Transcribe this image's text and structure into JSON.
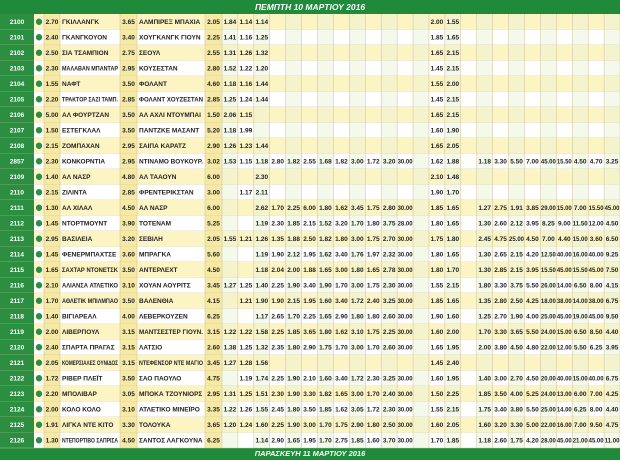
{
  "header": {
    "title": "ΠΕΜΠΤΗ 10 ΜΑΡΤΙΟΥ 2016"
  },
  "footer": {
    "title": "ΠΑΡΑΣΚΕΥΗ 11 ΜΑΡΤΙΟΥ 2016"
  },
  "table": {
    "rows": [
      {
        "code": "2100",
        "odd1": "2.70",
        "home": "ΓΚΙΛΛΑΝΓΚ",
        "oddx": "3.65",
        "away": "ΑΛΜΠΙΡΕΞ ΜΠΑΧΙΑ",
        "odd2": "2.05",
        "extra": [
          "1.84",
          "1.14",
          "1.14",
          null,
          null,
          null,
          null,
          null,
          null,
          null,
          null,
          null,
          null,
          "2.00",
          "1.55"
        ]
      },
      {
        "code": "2101",
        "odd1": "2.40",
        "home": "ΓΚΑΝΓΚΟΥΟΝ",
        "oddx": "3.40",
        "away": "ΧΟΥΓΚΑΝΓΚ ΓΙΟΥΝ",
        "odd2": "2.25",
        "extra": [
          "1.41",
          "1.16",
          "1.25",
          null,
          null,
          null,
          null,
          null,
          null,
          null,
          null,
          null,
          null,
          "1.85",
          "1.65"
        ]
      },
      {
        "code": "2102",
        "odd1": "2.50",
        "home": "ΣΙΑ ΤΣΑΜΠΙΟΝ",
        "oddx": "2.75",
        "away": "ΣΕΟΥΛ",
        "odd2": "2.55",
        "extra": [
          "1.31",
          "1.26",
          "1.32",
          null,
          null,
          null,
          null,
          null,
          null,
          null,
          null,
          null,
          null,
          "1.65",
          "2.15"
        ]
      },
      {
        "code": "2103",
        "odd1": "2.30",
        "home": "ΜΑΛΑΒΑΝ ΜΠΑΝΤΑΡ",
        "oddx": "2.95",
        "away": "ΚΟΥΣΕΣΤΑΝ",
        "odd2": "2.80",
        "extra": [
          "1.52",
          "1.22",
          "1.20",
          null,
          null,
          null,
          null,
          null,
          null,
          null,
          null,
          null,
          null,
          "1.45",
          "2.15"
        ]
      },
      {
        "code": "2104",
        "odd1": "1.55",
        "home": "ΝΑΦΤ",
        "oddx": "3.50",
        "away": "ΦΟΛΑΝΤ",
        "odd2": "4.60",
        "extra": [
          "1.18",
          "1.16",
          "1.44",
          null,
          null,
          null,
          null,
          null,
          null,
          null,
          null,
          null,
          null,
          "1.55",
          "2.00"
        ]
      },
      {
        "code": "2105",
        "odd1": "2.20",
        "home": "ΤΡΑΚΤΟΡ ΣΑΖΙ ΤΑΜΠ.",
        "oddx": "2.85",
        "away": "ΦΟΛΑΝΤ ΧΟΥΖΕΣΤΑΝ",
        "odd2": "2.85",
        "extra": [
          "1.25",
          "1.24",
          "1.44",
          null,
          null,
          null,
          null,
          null,
          null,
          null,
          null,
          null,
          null,
          "1.45",
          "2.15"
        ]
      },
      {
        "code": "2106",
        "odd1": "5.00",
        "home": "ΑΛ ΦΟΥΡΤΖΑΝ",
        "oddx": "3.50",
        "away": "ΑΛ ΑΧΛΙ ΝΤΟΥΜΠΑΙ",
        "odd2": "1.50",
        "extra": [
          "2.06",
          "1.15",
          null,
          null,
          null,
          null,
          null,
          null,
          null,
          null,
          null,
          null,
          null,
          "1.65",
          "2.15"
        ]
      },
      {
        "code": "2107",
        "odd1": "1.50",
        "home": "ΕΣΤΕΓΚΛΑΛ",
        "oddx": "3.50",
        "away": "ΠΑΝΤΖΚΕ ΜΑΣΑΝΤ",
        "odd2": "5.20",
        "extra": [
          "1.18",
          "1.99",
          null,
          null,
          null,
          null,
          null,
          null,
          null,
          null,
          null,
          null,
          null,
          "1.60",
          "1.90"
        ]
      },
      {
        "code": "2108",
        "odd1": "2.15",
        "home": "ΖΟΜΠΑΧΑΝ",
        "oddx": "2.95",
        "away": "ΣΑΙΠΑ ΚΑΡΑΤΖ",
        "odd2": "2.90",
        "extra": [
          "1.26",
          "1.23",
          "1.44",
          null,
          null,
          null,
          null,
          null,
          null,
          null,
          null,
          null,
          null,
          "1.65",
          "2.05"
        ]
      },
      {
        "code": "2857",
        "odd1": "2.30",
        "home": "ΚΟΝΚΟΡΝΤΙΑ",
        "oddx": "2.95",
        "away": "ΝΤΙΝΑΜΟ ΒΟΥΚΟΥΡ.",
        "odd2": "3.02",
        "extra": [
          "1.53",
          "1.15",
          "1.18",
          "2.80",
          "1.82",
          "2.55",
          "1.68",
          "1.82",
          "3.00",
          "1.72",
          "3.20",
          "30.00",
          null,
          "1.62",
          "1.88",
          null,
          "1.18",
          "3.30",
          "5.50",
          "7.00",
          "45.00",
          "15.50",
          "4.50",
          "4.70",
          "3.25"
        ]
      },
      {
        "code": "2109",
        "odd1": "1.40",
        "home": "ΑΛ ΝΑΣΡ",
        "oddx": "4.80",
        "away": "ΑΛ ΤΑΑΟΥΝ",
        "odd2": "6.00",
        "extra": [
          null,
          null,
          "2.30",
          null,
          null,
          null,
          null,
          null,
          null,
          null,
          null,
          null,
          null,
          "2.10",
          "1.48"
        ]
      },
      {
        "code": "2110",
        "odd1": "2.15",
        "home": "ΖΙΛΙΝΤΑ",
        "oddx": "2.85",
        "away": "ΦΡΕΝΤΕΡΙΚΣΤΑΝ",
        "odd2": "3.00",
        "extra": [
          null,
          "1.17",
          "2.11",
          null,
          null,
          null,
          null,
          null,
          null,
          null,
          null,
          null,
          null,
          "1.90",
          "1.70"
        ]
      },
      {
        "code": "2111",
        "odd1": "1.30",
        "home": "ΑΛ ΧΙΛΑΛ",
        "oddx": "4.50",
        "away": "ΑΛ ΝΑΣΡ",
        "odd2": "6.00",
        "extra": [
          null,
          null,
          "2.62",
          "1.70",
          "2.25",
          "6.00",
          "1.80",
          "1.62",
          "3.45",
          "1.75",
          "2.80",
          "30.00",
          null,
          "1.85",
          "1.65",
          null,
          "1.27",
          "2.75",
          "1.91",
          "3.85",
          "29.00",
          "15.00",
          "7.00",
          "15.50",
          "45.00"
        ]
      },
      {
        "code": "2112",
        "odd1": "1.45",
        "home": "ΝΤΟΡΤΜΟΥΝΤ",
        "oddx": "3.90",
        "away": "ΤΟΤΕΝΑΜ",
        "odd2": "5.25",
        "extra": [
          null,
          null,
          "1.19",
          "2.30",
          "1.85",
          "2.15",
          "1.52",
          "3.20",
          "1.70",
          "1.80",
          "3.75",
          "28.00",
          null,
          "1.80",
          "1.65",
          null,
          "1.30",
          "2.60",
          "2.12",
          "3.95",
          "8.25",
          "9.00",
          "11.50",
          "12.00",
          "4.50"
        ]
      },
      {
        "code": "2113",
        "odd1": "2.95",
        "home": "ΒΑΣΙΛΕΙΑ",
        "oddx": "3.20",
        "away": "ΣΕΒΙΛΗ",
        "odd2": "2.05",
        "extra": [
          "1.55",
          "1.21",
          "1.26",
          "1.35",
          "1.88",
          "2.50",
          "1.82",
          "1.80",
          "3.00",
          "1.75",
          "2.70",
          "30.00",
          null,
          "1.75",
          "1.80",
          null,
          "2.45",
          "4.75",
          "25.00",
          "4.50",
          "7.00",
          "4.40",
          "15.00",
          "3.60",
          "6.50"
        ]
      },
      {
        "code": "2114",
        "odd1": "1.45",
        "home": "ΦΕΝΕΡΜΠΑΧΤΣΕ",
        "oddx": "3.60",
        "away": "ΜΠΡΑΓΚΑ",
        "odd2": "5.60",
        "extra": [
          null,
          null,
          "1.19",
          "1.90",
          "2.12",
          "1.95",
          "1.62",
          "3.40",
          "1.76",
          "1.97",
          "2.32",
          "30.00",
          null,
          "1.80",
          "1.65",
          null,
          "1.30",
          "2.65",
          "2.15",
          "4.20",
          "12.50",
          "40.00",
          "16.00",
          "40.00",
          "9.25"
        ]
      },
      {
        "code": "2115",
        "odd1": "1.65",
        "home": "ΣΑΧΤΑΡ ΝΤΟΝΕΤΣΚ",
        "oddx": "3.50",
        "away": "ΑΝΤΕΡΛΕΧΤ",
        "odd2": "4.50",
        "extra": [
          null,
          null,
          "1.18",
          "2.04",
          "2.00",
          "1.88",
          "1.65",
          "3.00",
          "1.80",
          "1.65",
          "2.78",
          "30.00",
          null,
          "1.80",
          "1.70",
          null,
          "1.30",
          "2.85",
          "2.15",
          "3.95",
          "15.50",
          "45.00",
          "15.50",
          "45.00",
          "7.50"
        ]
      },
      {
        "code": "2116",
        "odd1": "2.10",
        "home": "ΑΛΙΑΝΣΑ ΑΤΛΕΤΙΚΟ",
        "oddx": "3.10",
        "away": "ΧΟΥΑΝ ΑΟΥΡΙΤΣ",
        "odd2": "3.45",
        "extra": [
          "1.27",
          "1.25",
          "1.40",
          "2.25",
          "1.90",
          "3.40",
          "1.90",
          "1.70",
          "3.00",
          "1.75",
          "2.30",
          "30.00",
          null,
          "1.55",
          "2.15",
          null,
          "1.80",
          "3.30",
          "3.75",
          "5.50",
          "26.00",
          "14.00",
          "6.50",
          "8.00",
          "4.15"
        ]
      },
      {
        "code": "2117",
        "odd1": "1.70",
        "home": "ΑΘΛΕΤΙΚ ΜΠΙΛΜΠΑΟ",
        "oddx": "3.50",
        "away": "ΒΑΛΕΝΘΙΑ",
        "odd2": "4.15",
        "extra": [
          null,
          "1.21",
          "1.90",
          "1.90",
          "2.15",
          "1.95",
          "1.60",
          "3.40",
          "1.72",
          "2.40",
          "3.25",
          "30.00",
          null,
          "1.85",
          "1.65",
          null,
          "1.35",
          "2.80",
          "2.50",
          "4.25",
          "18.00",
          "38.00",
          "14.00",
          "38.00",
          "6.75"
        ]
      },
      {
        "code": "2118",
        "odd1": "1.40",
        "home": "ΒΙΓΙΑΡΕΑΛ",
        "oddx": "4.00",
        "away": "ΛΕΒΕΡΚΟΥΖΕΝ",
        "odd2": "6.25",
        "extra": [
          null,
          null,
          "1.17",
          "2.65",
          "1.70",
          "2.25",
          "1.65",
          "2.90",
          "1.80",
          "1.80",
          "2.60",
          "30.00",
          null,
          "1.90",
          "1.60",
          null,
          "1.25",
          "2.70",
          "1.90",
          "4.00",
          "25.00",
          "45.00",
          "19.00",
          "45.00",
          "9.50"
        ]
      },
      {
        "code": "2119",
        "odd1": "2.00",
        "home": "ΛΙΒΕΡΠΟΥΛ",
        "oddx": "3.15",
        "away": "ΜΑΝΤΣΕΣΤΕΡ ΓΙΟΥΝ.",
        "odd2": "3.15",
        "extra": [
          "1.22",
          "1.22",
          "1.58",
          "2.25",
          "1.85",
          "3.65",
          "1.80",
          "1.62",
          "3.10",
          "1.75",
          "2.25",
          "30.00",
          null,
          "1.60",
          "2.00",
          null,
          "1.70",
          "3.30",
          "3.65",
          "5.50",
          "24.00",
          "15.00",
          "6.50",
          "8.50",
          "4.40"
        ]
      },
      {
        "code": "2120",
        "odd1": "2.40",
        "home": "ΣΠΑΡΤΑ ΠΡΑΓΑΣ",
        "oddx": "3.15",
        "away": "ΛΑΤΣΙΟ",
        "odd2": "2.60",
        "extra": [
          "1.38",
          "1.25",
          "1.32",
          "2.35",
          "1.80",
          "2.90",
          "1.75",
          "1.70",
          "3.00",
          "1.70",
          "2.60",
          "30.00",
          null,
          "1.65",
          "1.95",
          null,
          "2.00",
          "3.80",
          "4.50",
          "4.80",
          "22.00",
          "12.00",
          "5.50",
          "6.25",
          "3.95"
        ]
      },
      {
        "code": "2121",
        "odd1": "2.05",
        "home": "ΚΟΜΕΡΣΙΑΛΕΣ ΟΥΝΙΔΟΣ",
        "oddx": "3.15",
        "away": "ΝΤΕΦΕΝΣΟΡ ΝΤΕ ΜΑΓΙΟ",
        "odd2": "3.45",
        "extra": [
          "1.27",
          "1.28",
          "1.56",
          null,
          null,
          null,
          null,
          null,
          null,
          null,
          null,
          null,
          null,
          "1.45",
          "2.40"
        ]
      },
      {
        "code": "2122",
        "odd1": "1.72",
        "home": "ΡΙΒΕΡ ΠΛΕΪΤ",
        "oddx": "3.50",
        "away": "ΣΑΟ ΠΑΟΥΛΟ",
        "odd2": "4.75",
        "extra": [
          null,
          "1.19",
          "1.74",
          "2.25",
          "1.90",
          "2.10",
          "1.60",
          "3.40",
          "1.72",
          "2.30",
          "3.25",
          "30.00",
          null,
          "1.60",
          "1.95",
          null,
          "1.40",
          "3.00",
          "2.70",
          "4.50",
          "20.00",
          "40.00",
          "15.00",
          "40.00",
          "6.75"
        ]
      },
      {
        "code": "2123",
        "odd1": "2.20",
        "home": "ΜΠΟΛΙΒΑΡ",
        "oddx": "3.05",
        "away": "ΜΠΟΚΑ ΤΖΟΥΝΙΟΡΣ",
        "odd2": "2.95",
        "extra": [
          "1.31",
          "1.25",
          "1.51",
          "2.30",
          "1.90",
          "3.30",
          "1.82",
          "1.65",
          "3.00",
          "1.70",
          "2.40",
          "30.00",
          null,
          "1.50",
          "2.25",
          null,
          "1.85",
          "3.50",
          "4.00",
          "5.25",
          "24.00",
          "13.00",
          "6.00",
          "7.00",
          "4.25"
        ]
      },
      {
        "code": "2124",
        "odd1": "2.00",
        "home": "ΚΟΛΟ ΚΟΛΟ",
        "oddx": "3.10",
        "away": "ΑΤΛΕΤΙΚΟ ΜΙΝΕΪΡΟ",
        "odd2": "3.35",
        "extra": [
          "1.22",
          "1.26",
          "1.55",
          "2.45",
          "1.80",
          "3.50",
          "1.85",
          "1.62",
          "3.05",
          "1.72",
          "2.30",
          "30.00",
          null,
          "1.55",
          "2.15",
          null,
          "1.75",
          "3.40",
          "3.80",
          "5.50",
          "25.00",
          "14.00",
          "6.25",
          "8.00",
          "4.40"
        ]
      },
      {
        "code": "2125",
        "odd1": "1.91",
        "home": "ΛΙΓΚΑ ΝΤΕ ΚΙΤΟ",
        "oddx": "3.30",
        "away": "ΤΟΛΟΥΚΑ",
        "odd2": "3.65",
        "extra": [
          "1.20",
          "1.24",
          "1.60",
          "2.25",
          "1.90",
          "3.00",
          "1.70",
          "1.75",
          "2.90",
          "1.80",
          "2.50",
          "30.00",
          null,
          "1.60",
          "2.05",
          null,
          "1.60",
          "3.20",
          "3.30",
          "5.00",
          "22.00",
          "16.00",
          "7.00",
          "9.50",
          "4.75"
        ]
      },
      {
        "code": "2126",
        "odd1": "1.30",
        "home": "ΝΤΕΠΟΡΤΙΒΟ ΣΑΠΡΙΣΑ",
        "oddx": "4.50",
        "away": "ΣΑΝΤΟΣ ΛΑΓΚΟΥΝΑ",
        "odd2": "6.25",
        "extra": [
          null,
          null,
          "1.14",
          "2.90",
          "1.65",
          "1.95",
          "1.70",
          "2.75",
          "1.85",
          "1.60",
          "3.70",
          "30.00",
          null,
          "1.70",
          "1.85",
          null,
          "1.18",
          "2.60",
          "1.75",
          "4.20",
          "28.00",
          "45.00",
          "21.00",
          "45.00",
          "11.00"
        ]
      }
    ]
  }
}
